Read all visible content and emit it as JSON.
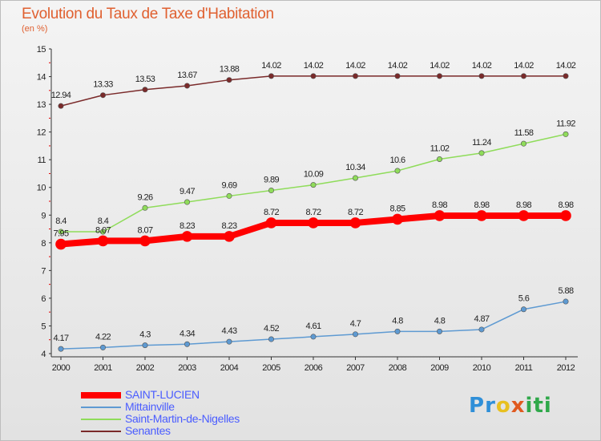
{
  "title": "Evolution du Taux de Taxe d'Habitation",
  "subtitle": "(en %)",
  "logo": {
    "text": "Proxiti",
    "letters": [
      {
        "ch": "P",
        "color": "#2f8fd8"
      },
      {
        "ch": "r",
        "color": "#2f8fd8"
      },
      {
        "ch": "o",
        "color": "#e8c020"
      },
      {
        "ch": "x",
        "color": "#e05a20"
      },
      {
        "ch": "i",
        "color": "#2fa84a"
      },
      {
        "ch": "t",
        "color": "#2fa84a"
      },
      {
        "ch": "i",
        "color": "#2fa84a"
      }
    ]
  },
  "chart_data": {
    "type": "line",
    "title": "Evolution du Taux de Taxe d'Habitation",
    "ylabel": "(en %)",
    "x": [
      2000,
      2001,
      2002,
      2003,
      2004,
      2005,
      2006,
      2007,
      2008,
      2009,
      2010,
      2011,
      2012
    ],
    "ylim": [
      4,
      15
    ],
    "yticks": [
      4,
      5,
      6,
      7,
      8,
      9,
      10,
      11,
      12,
      13,
      14,
      15
    ],
    "grid": false,
    "legend_position": "bottom-left",
    "series": [
      {
        "name": "SAINT-LUCIEN",
        "color": "#ff0000",
        "width": 8,
        "values": [
          7.95,
          8.07,
          8.07,
          8.23,
          8.23,
          8.72,
          8.72,
          8.72,
          8.85,
          8.98,
          8.98,
          8.98,
          8.98
        ],
        "labels": [
          "7.95",
          "8.07",
          "8.07",
          "8.23",
          "8.23",
          "8.72",
          "8.72",
          "8.72",
          "8.85",
          "8.98",
          "8.98",
          "8.98",
          "8.98"
        ]
      },
      {
        "name": "Mittainville",
        "color": "#5e9ad2",
        "width": 1.5,
        "values": [
          4.17,
          4.22,
          4.3,
          4.34,
          4.43,
          4.52,
          4.61,
          4.7,
          4.8,
          4.8,
          4.87,
          5.6,
          5.88
        ],
        "labels": [
          "4.17",
          "4.22",
          "4.3",
          "4.34",
          "4.43",
          "4.52",
          "4.61",
          "4.7",
          "4.8",
          "4.8",
          "4.87",
          "5.6",
          "5.88"
        ]
      },
      {
        "name": "Saint-Martin-de-Nigelles",
        "color": "#8fdc5a",
        "width": 1.5,
        "values": [
          8.4,
          8.4,
          9.26,
          9.47,
          9.69,
          9.89,
          10.09,
          10.34,
          10.6,
          11.02,
          11.24,
          11.58,
          11.92
        ],
        "labels": [
          "8.4",
          "8.4",
          "9.26",
          "9.47",
          "9.69",
          "9.89",
          "10.09",
          "10.34",
          "10.6",
          "11.02",
          "11.24",
          "11.58",
          "11.92"
        ]
      },
      {
        "name": "Senantes",
        "color": "#7a2a2a",
        "width": 1.5,
        "values": [
          12.94,
          13.33,
          13.53,
          13.67,
          13.88,
          14.02,
          14.02,
          14.02,
          14.02,
          14.02,
          14.02,
          14.02,
          14.02
        ],
        "labels": [
          "12.94",
          "13.33",
          "13.53",
          "13.67",
          "13.88",
          "14.02",
          "14.02",
          "14.02",
          "14.02",
          "14.02",
          "14.02",
          "14.02",
          "14.02"
        ]
      }
    ]
  }
}
